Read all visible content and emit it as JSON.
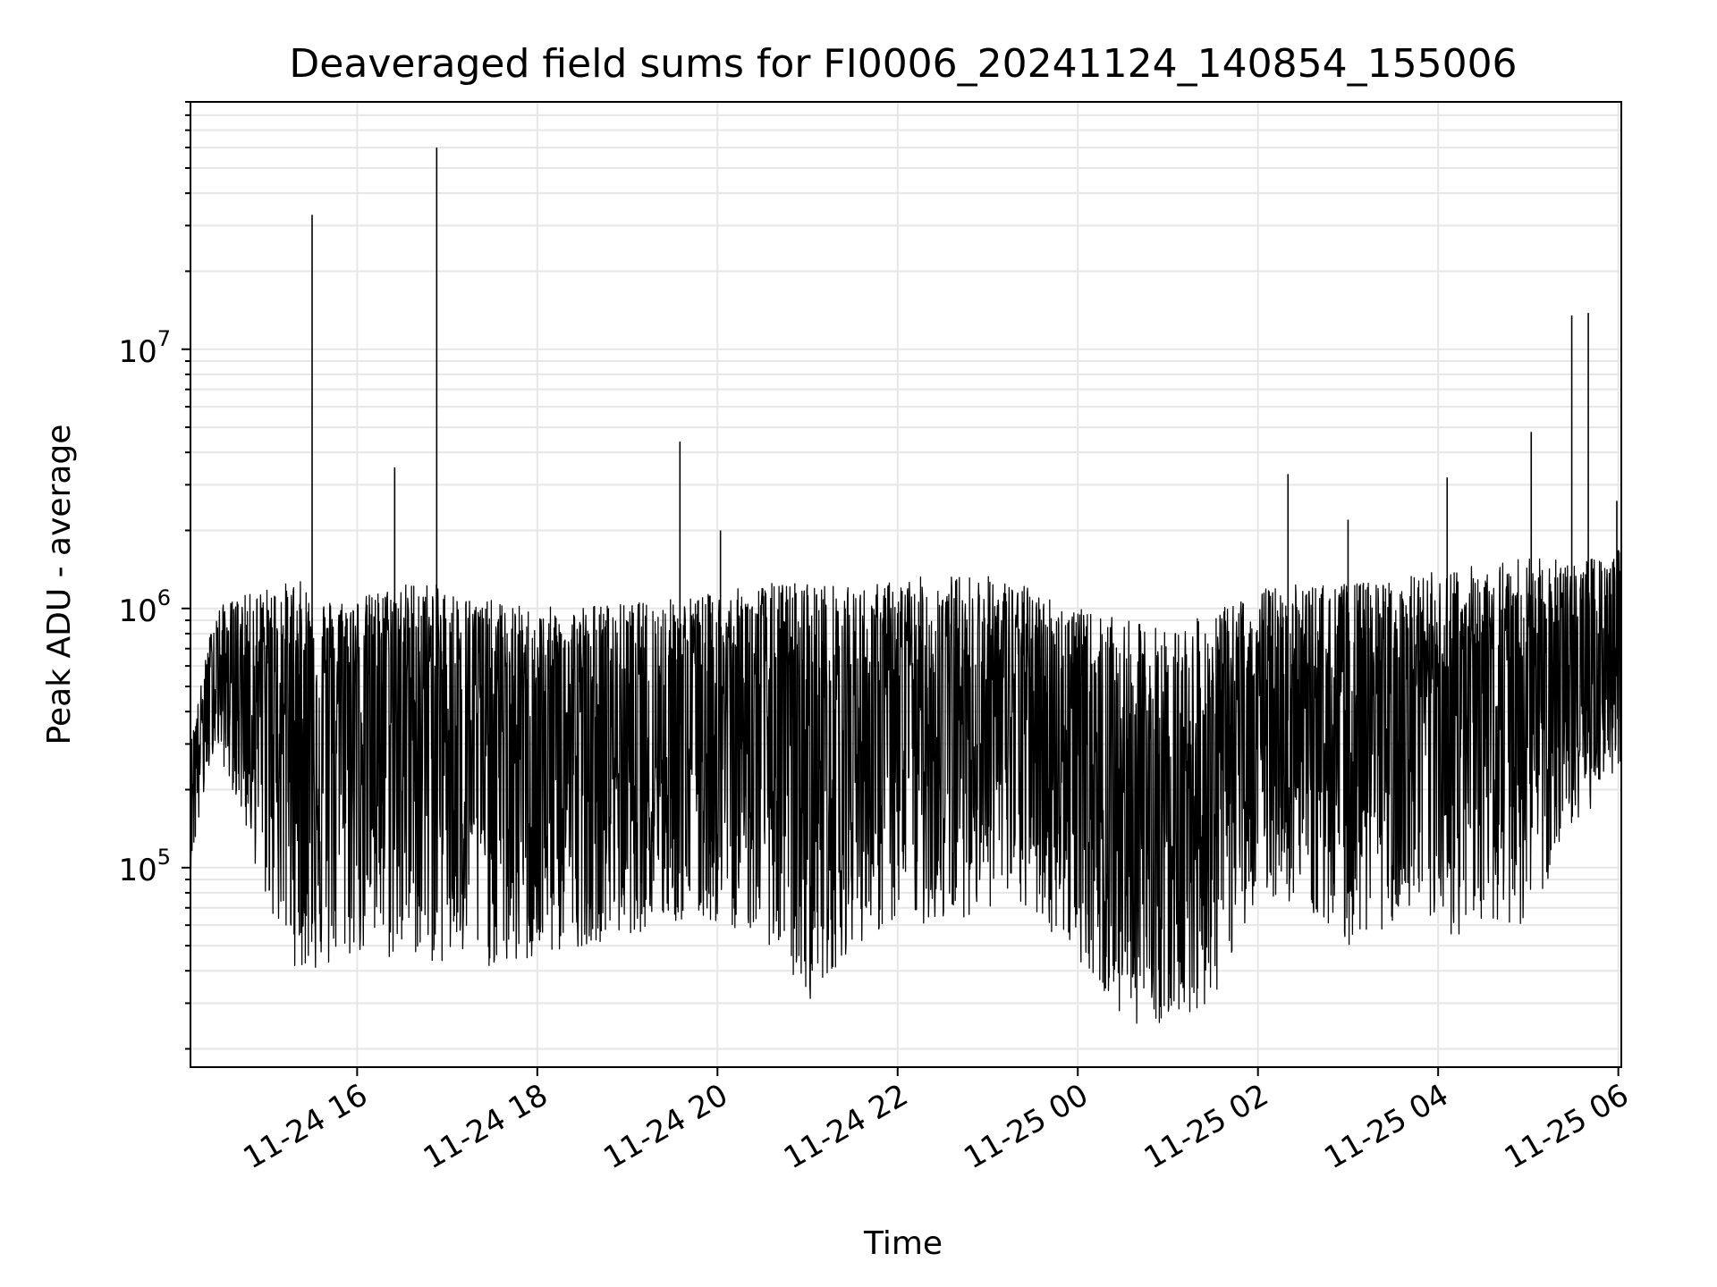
{
  "chart_data": {
    "type": "line",
    "title": "Deaveraged field sums for FI0006_20241124_140854_155006",
    "xlabel": "Time",
    "ylabel": "Peak ADU - average",
    "yscale": "log",
    "ylim": [
      17000,
      90000000
    ],
    "xlim": [
      "2024-11-24 14:09",
      "2024-11-25 06:02"
    ],
    "grid": true,
    "x_ticks": [
      "11-24 16",
      "11-24 18",
      "11-24 20",
      "11-24 22",
      "11-25 00",
      "11-25 02",
      "11-25 04",
      "11-25 06"
    ],
    "y_ticks": [
      {
        "base": "10",
        "exp": "5",
        "value": 100000
      },
      {
        "base": "10",
        "exp": "6",
        "value": 1000000
      },
      {
        "base": "10",
        "exp": "7",
        "value": 10000000
      }
    ],
    "line_color": "#000000",
    "grid_color": "#e6e6e6",
    "series": [
      {
        "x": [
          "2024-11-24 14:09",
          "2024-11-24 14:25",
          "2024-11-24 14:40",
          "2024-11-24 15:00",
          "2024-11-24 15:20",
          "2024-11-24 15:40",
          "2024-11-24 16:00",
          "2024-11-24 16:20",
          "2024-11-24 16:40",
          "2024-11-24 17:00",
          "2024-11-24 17:20",
          "2024-11-24 17:40",
          "2024-11-24 18:00",
          "2024-11-24 18:30",
          "2024-11-24 19:00",
          "2024-11-24 19:30",
          "2024-11-24 20:00",
          "2024-11-24 20:30",
          "2024-11-24 21:00",
          "2024-11-24 21:30",
          "2024-11-24 22:00",
          "2024-11-24 22:30",
          "2024-11-24 23:00",
          "2024-11-24 23:30",
          "2024-11-25 00:00",
          "2024-11-25 00:30",
          "2024-11-25 01:00",
          "2024-11-25 01:30",
          "2024-11-25 02:00",
          "2024-11-25 02:30",
          "2024-11-25 03:00",
          "2024-11-25 03:30",
          "2024-11-25 04:00",
          "2024-11-25 04:30",
          "2024-11-25 05:00",
          "2024-11-25 05:30",
          "2024-11-25 06:00"
        ],
        "low": [
          95000,
          300000,
          180000,
          70000,
          40000,
          38000,
          45000,
          42000,
          45000,
          40000,
          42000,
          40000,
          42000,
          50000,
          55000,
          60000,
          60000,
          55000,
          30000,
          50000,
          60000,
          60000,
          70000,
          65000,
          45000,
          25000,
          25000,
          30000,
          80000,
          70000,
          50000,
          60000,
          50000,
          60000,
          60000,
          130000,
          250000
        ],
        "mid": [
          250000,
          550000,
          550000,
          500000,
          400000,
          400000,
          500000,
          500000,
          450000,
          400000,
          380000,
          300000,
          280000,
          300000,
          300000,
          350000,
          380000,
          350000,
          280000,
          330000,
          380000,
          400000,
          450000,
          420000,
          300000,
          150000,
          150000,
          200000,
          350000,
          380000,
          300000,
          380000,
          400000,
          500000,
          550000,
          550000,
          650000
        ],
        "high": [
          300000,
          1000000,
          1100000,
          1200000,
          1300000,
          1100000,
          1100000,
          1200000,
          1300000,
          1200000,
          1100000,
          1050000,
          1000000,
          1050000,
          1050000,
          1100000,
          1150000,
          1250000,
          1300000,
          1200000,
          1300000,
          1350000,
          1350000,
          1200000,
          1000000,
          900000,
          850000,
          950000,
          1200000,
          1250000,
          1250000,
          1300000,
          1400000,
          1500000,
          1600000,
          1500000,
          1700000
        ]
      }
    ],
    "spikes": [
      {
        "x": "2024-11-24 15:30",
        "y": 33000000
      },
      {
        "x": "2024-11-24 16:25",
        "y": 3500000
      },
      {
        "x": "2024-11-24 16:53",
        "y": 60000000
      },
      {
        "x": "2024-11-24 19:35",
        "y": 4400000
      },
      {
        "x": "2024-11-24 20:02",
        "y": 2000000
      },
      {
        "x": "2024-11-25 02:20",
        "y": 3300000
      },
      {
        "x": "2024-11-25 03:00",
        "y": 2200000
      },
      {
        "x": "2024-11-25 04:06",
        "y": 3200000
      },
      {
        "x": "2024-11-25 05:02",
        "y": 4800000
      },
      {
        "x": "2024-11-25 05:29",
        "y": 13500000
      },
      {
        "x": "2024-11-25 05:40",
        "y": 13800000
      },
      {
        "x": "2024-11-25 05:59",
        "y": 2600000
      }
    ]
  }
}
